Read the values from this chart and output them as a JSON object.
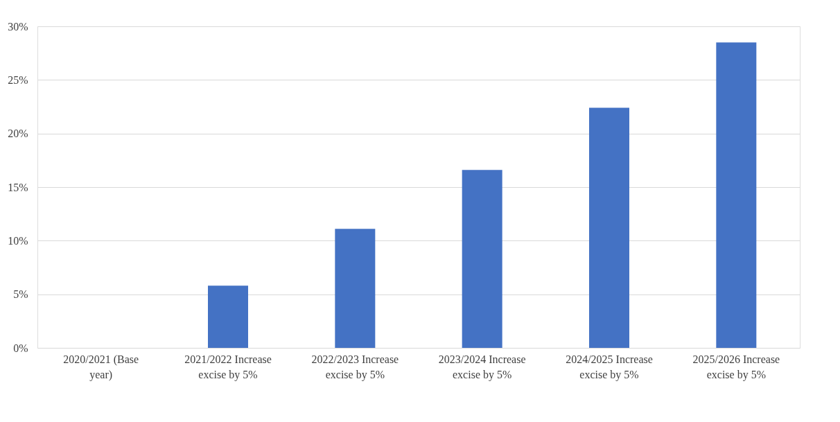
{
  "chart_data": {
    "type": "bar",
    "categories": [
      "2020/2021 (Base year)",
      "2021/2022 Increase excise by 5%",
      "2022/2023 Increase excise by 5%",
      "2023/2024 Increase excise by 5%",
      "2024/2025 Increase excise by 5%",
      "2025/2026 Increase excise by 5%"
    ],
    "series": [
      {
        "color": "#4472c4",
        "values": [
          0,
          5.8,
          11.1,
          16.6,
          22.4,
          28.5
        ]
      }
    ],
    "ylim": [
      0,
      30
    ],
    "yticks": [
      {
        "value": 0,
        "label": "0%"
      },
      {
        "value": 5,
        "label": "5%"
      },
      {
        "value": 10,
        "label": "10%"
      },
      {
        "value": 15,
        "label": "15%"
      },
      {
        "value": 20,
        "label": "20%"
      },
      {
        "value": 25,
        "label": "25%"
      },
      {
        "value": 30,
        "label": "30%"
      }
    ],
    "grid": "y",
    "legend": false
  }
}
